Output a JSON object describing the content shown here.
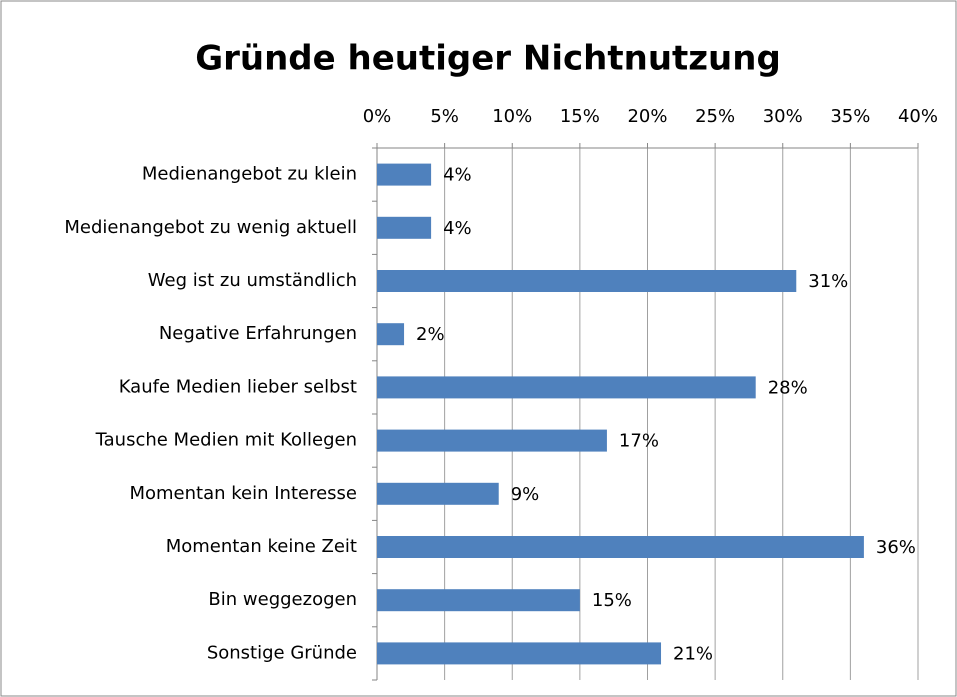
{
  "chart_data": {
    "type": "bar",
    "orientation": "horizontal",
    "title": "Gründe heutiger Nichtnutzung",
    "categories": [
      "Medienangebot zu klein",
      "Medienangebot zu wenig aktuell",
      "Weg ist zu umständlich",
      "Negative Erfahrungen",
      "Kaufe Medien lieber selbst",
      "Tausche Medien mit Kollegen",
      "Momentan kein Interesse",
      "Momentan keine Zeit",
      "Bin weggezogen",
      "Sonstige Gründe"
    ],
    "values": [
      4,
      4,
      31,
      2,
      28,
      17,
      9,
      36,
      15,
      21
    ],
    "value_labels": [
      "4%",
      "4%",
      "31%",
      "2%",
      "28%",
      "17%",
      "9%",
      "36%",
      "15%",
      "21%"
    ],
    "color": "#4f81bd",
    "xlim": [
      0,
      40
    ],
    "xticks": [
      {
        "value": 0,
        "label": "0%"
      },
      {
        "value": 5,
        "label": "5%"
      },
      {
        "value": 10,
        "label": "10%"
      },
      {
        "value": 15,
        "label": "15%"
      },
      {
        "value": 20,
        "label": "20%"
      },
      {
        "value": 25,
        "label": "25%"
      },
      {
        "value": 30,
        "label": "30%"
      },
      {
        "value": 35,
        "label": "35%"
      },
      {
        "value": 40,
        "label": "40%"
      }
    ],
    "grid": true
  }
}
